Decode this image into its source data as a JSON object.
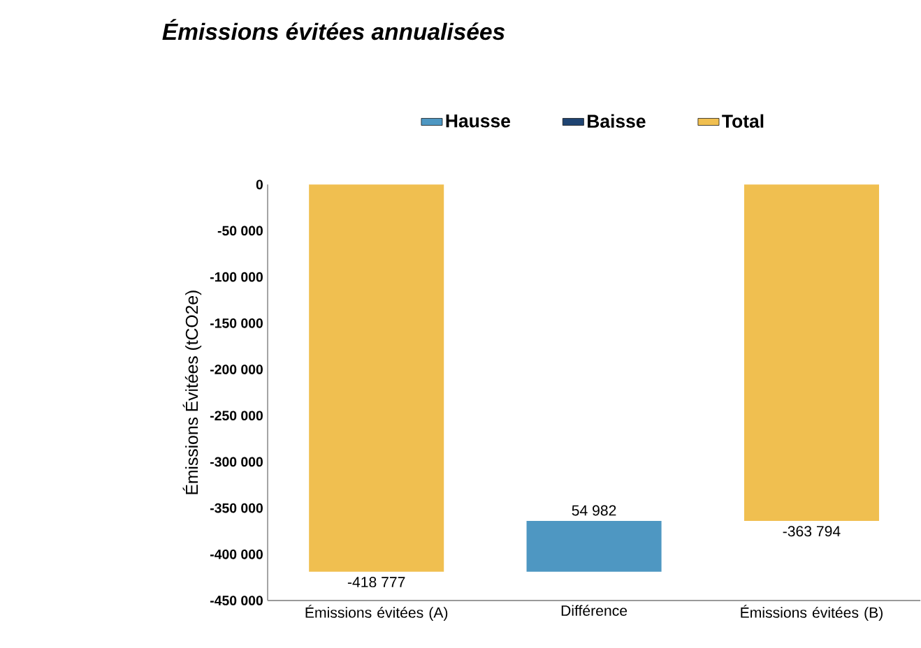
{
  "chart_data": {
    "type": "bar",
    "title": "*Émissions évitées annualisées*",
    "ylabel": "Émissions Évitées (tCO2e)",
    "categories": [
      "Émissions évitées (A)",
      "Différence",
      "Émissions évitées (B)"
    ],
    "series": [
      {
        "name": "Hausse",
        "color": "#4e97c2",
        "values": [
          null,
          54982,
          null
        ],
        "base": [
          null,
          -418777,
          null
        ],
        "value_labels": [
          null,
          "54 982",
          null
        ]
      },
      {
        "name": "Baisse",
        "color": "#1f4472",
        "values": [
          null,
          null,
          null
        ]
      },
      {
        "name": "Total",
        "color": "#f0bf50",
        "values": [
          -418777,
          null,
          -363794
        ],
        "base": [
          0,
          null,
          0
        ],
        "value_labels": [
          "-418 777",
          null,
          "-363 794"
        ]
      }
    ],
    "ylim": [
      -450000,
      0
    ],
    "yticks": [
      {
        "value": 0,
        "label": "0"
      },
      {
        "value": -50000,
        "label": "-50 000"
      },
      {
        "value": -100000,
        "label": "-100 000"
      },
      {
        "value": -150000,
        "label": "-150 000"
      },
      {
        "value": -200000,
        "label": "-200 000"
      },
      {
        "value": -250000,
        "label": "-250 000"
      },
      {
        "value": -300000,
        "label": "-300 000"
      },
      {
        "value": -350000,
        "label": "-350 000"
      },
      {
        "value": -400000,
        "label": "-400 000"
      },
      {
        "value": -450000,
        "label": "-450 000"
      }
    ],
    "legend": "top",
    "grid": false
  }
}
